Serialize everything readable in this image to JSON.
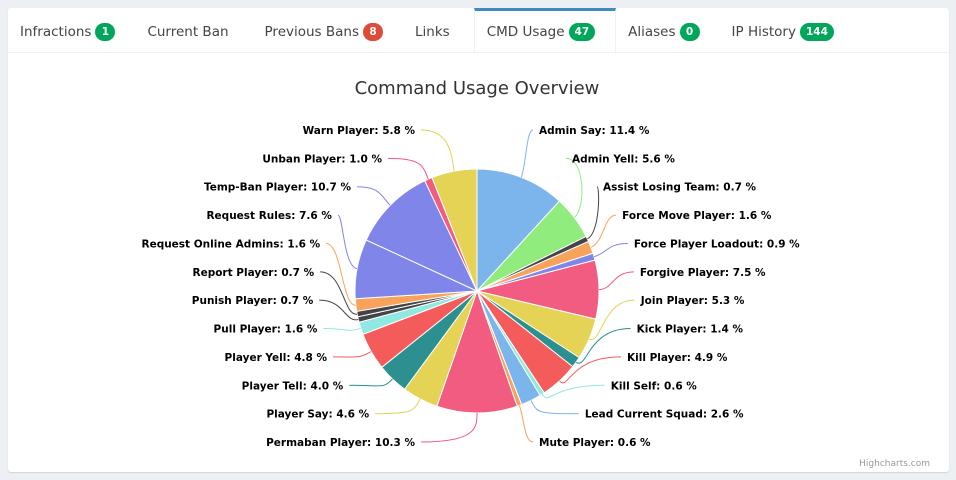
{
  "tabs": [
    {
      "label": "Infractions",
      "badge": "1",
      "badge_color": "#00a65a"
    },
    {
      "label": "Current Ban",
      "badge": null
    },
    {
      "label": "Previous Bans",
      "badge": "8",
      "badge_color": "#dd4b39"
    },
    {
      "label": "Links",
      "badge": null
    },
    {
      "label": "CMD Usage",
      "badge": "47",
      "badge_color": "#00a65a",
      "active": true
    },
    {
      "label": "Aliases",
      "badge": "0",
      "badge_color": "#00a65a"
    },
    {
      "label": "IP History",
      "badge": "144",
      "badge_color": "#00a65a"
    }
  ],
  "credit": "Highcharts.com",
  "chart_data": {
    "type": "pie",
    "title": "Command Usage Overview",
    "unit": "%",
    "slices": [
      {
        "name": "Admin Say",
        "value": 11.4,
        "color": "#7cb5ec"
      },
      {
        "name": "Admin Yell",
        "value": 5.6,
        "color": "#90ed7d"
      },
      {
        "name": "Assist Losing Team",
        "value": 0.7,
        "color": "#434348"
      },
      {
        "name": "Force Move Player",
        "value": 1.6,
        "color": "#f7a35c"
      },
      {
        "name": "Force Player Loadout",
        "value": 0.9,
        "color": "#8085e9"
      },
      {
        "name": "Forgive Player",
        "value": 7.5,
        "color": "#f15c80"
      },
      {
        "name": "Join Player",
        "value": 5.3,
        "color": "#e4d354"
      },
      {
        "name": "Kick Player",
        "value": 1.4,
        "color": "#2b908f"
      },
      {
        "name": "Kill Player",
        "value": 4.9,
        "color": "#f45b5b"
      },
      {
        "name": "Kill Self",
        "value": 0.6,
        "color": "#91e8e1"
      },
      {
        "name": "Lead Current Squad",
        "value": 2.6,
        "color": "#7cb5ec"
      },
      {
        "name": "Mute Player",
        "value": 0.6,
        "color": "#f7a35c"
      },
      {
        "name": "Permaban Player",
        "value": 10.3,
        "color": "#f15c80"
      },
      {
        "name": "Player Say",
        "value": 4.6,
        "color": "#e4d354"
      },
      {
        "name": "Player Tell",
        "value": 4.0,
        "color": "#2b908f"
      },
      {
        "name": "Player Yell",
        "value": 4.8,
        "color": "#f45b5b"
      },
      {
        "name": "Pull Player",
        "value": 1.6,
        "color": "#91e8e1"
      },
      {
        "name": "Punish Player",
        "value": 0.7,
        "color": "#434348"
      },
      {
        "name": "Report Player",
        "value": 0.7,
        "color": "#434348"
      },
      {
        "name": "Request Online Admins",
        "value": 1.6,
        "color": "#f7a35c"
      },
      {
        "name": "Request Rules",
        "value": 7.6,
        "color": "#8085e9"
      },
      {
        "name": "Temp-Ban Player",
        "value": 10.7,
        "color": "#8085e9"
      },
      {
        "name": "Unban Player",
        "value": 1.0,
        "color": "#f15c80"
      },
      {
        "name": "Warn Player",
        "value": 5.8,
        "color": "#e4d354"
      }
    ]
  }
}
